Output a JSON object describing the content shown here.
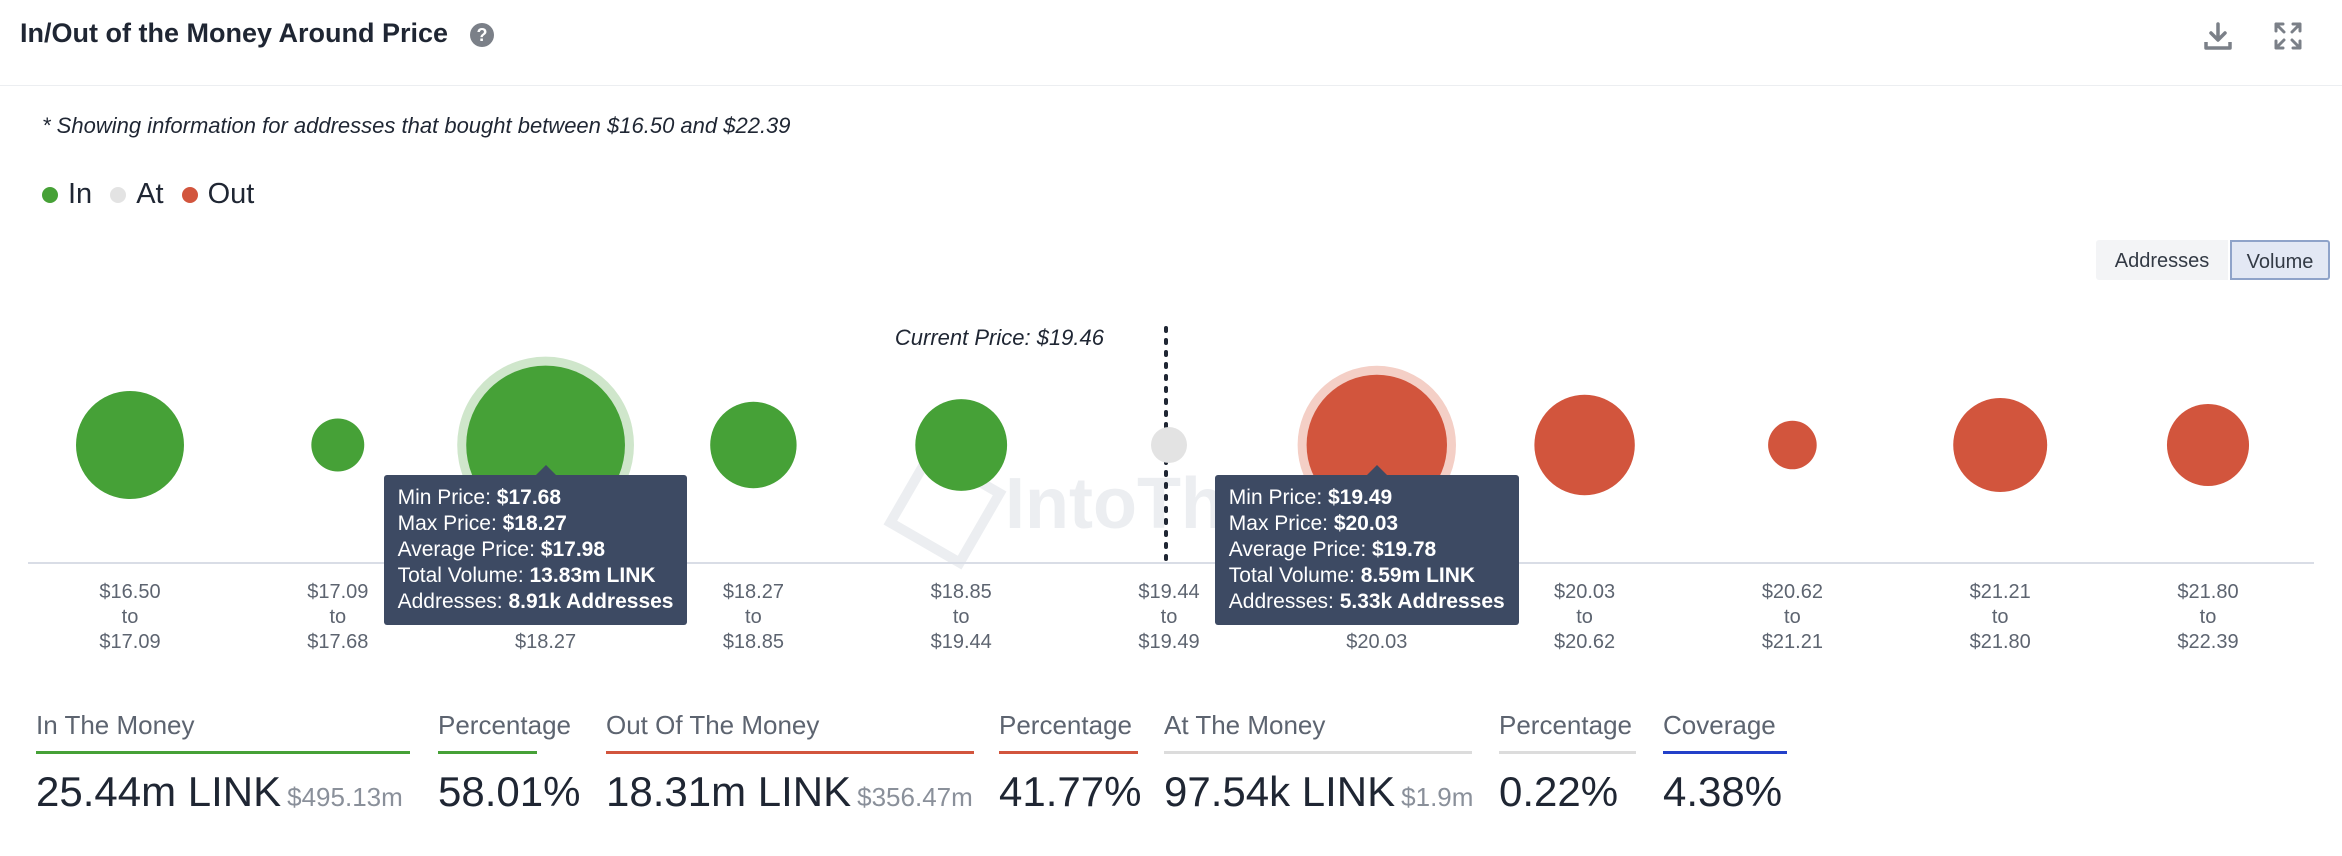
{
  "header": {
    "title": "In/Out of the Money Around Price",
    "help_icon": "question-circle-icon",
    "download_icon": "download-icon",
    "expand_icon": "expand-icon"
  },
  "note": "* Showing information for addresses that bought between $16.50 and $22.39",
  "legend": [
    {
      "label": "In",
      "color": "#46a137"
    },
    {
      "label": "At",
      "color": "#e3e3e3"
    },
    {
      "label": "Out",
      "color": "#d2553d"
    }
  ],
  "toggle": {
    "addresses": "Addresses",
    "volume": "Volume",
    "active": "Volume"
  },
  "watermark": "IntoThe",
  "chart_data": {
    "type": "bubble",
    "current_price_label": "Current Price: $19.46",
    "current_price": 19.46,
    "series_colors": {
      "in": "#46a137",
      "at": "#e3e3e3",
      "out": "#d2553d"
    },
    "buckets": [
      {
        "from": "$16.50",
        "to": "$17.09",
        "status": "in",
        "size": 1.0
      },
      {
        "from": "$17.09",
        "to": "$17.68",
        "status": "in",
        "size": 0.49
      },
      {
        "from": "$17.68",
        "to": "$18.27",
        "status": "in",
        "size": 1.47,
        "highlighted": true
      },
      {
        "from": "$18.27",
        "to": "$18.85",
        "status": "in",
        "size": 0.8
      },
      {
        "from": "$18.85",
        "to": "$19.44",
        "status": "in",
        "size": 0.85
      },
      {
        "from": "$19.44",
        "to": "$19.49",
        "status": "at",
        "size": 0.1
      },
      {
        "from": "$19.49",
        "to": "$20.03",
        "status": "out",
        "size": 1.3,
        "highlighted": true
      },
      {
        "from": "$20.03",
        "to": "$20.62",
        "status": "out",
        "size": 0.93
      },
      {
        "from": "$20.62",
        "to": "$21.21",
        "status": "out",
        "size": 0.45
      },
      {
        "from": "$21.21",
        "to": "$21.80",
        "status": "out",
        "size": 0.87
      },
      {
        "from": "$21.80",
        "to": "$22.39",
        "status": "out",
        "size": 0.76
      }
    ],
    "connector_word": "to",
    "tooltips": [
      {
        "bucket": 2,
        "min_price_label": "Min Price:",
        "min_price": "$17.68",
        "max_price_label": "Max Price:",
        "max_price": "$18.27",
        "avg_price_label": "Average Price:",
        "avg_price": "$17.98",
        "volume_label": "Total Volume:",
        "volume": "13.83m LINK",
        "addresses_label": "Addresses:",
        "addresses": "8.91k Addresses"
      },
      {
        "bucket": 6,
        "min_price_label": "Min Price:",
        "min_price": "$19.49",
        "max_price_label": "Max Price:",
        "max_price": "$20.03",
        "avg_price_label": "Average Price:",
        "avg_price": "$19.78",
        "volume_label": "Total Volume:",
        "volume": "8.59m LINK",
        "addresses_label": "Addresses:",
        "addresses": "5.33k Addresses"
      }
    ]
  },
  "stats": [
    {
      "label": "In The Money",
      "value": "25.44m LINK",
      "sub": "$495.13m",
      "color": "#46a137"
    },
    {
      "label": "Percentage",
      "value": "58.01%",
      "sub": "",
      "color": "#46a137"
    },
    {
      "label": "Out Of The Money",
      "value": "18.31m LINK",
      "sub": "$356.47m",
      "color": "#d2553d"
    },
    {
      "label": "Percentage",
      "value": "41.77%",
      "sub": "",
      "color": "#d2553d"
    },
    {
      "label": "At The Money",
      "value": "97.54k LINK",
      "sub": "$1.9m",
      "color": "#dcdcdc"
    },
    {
      "label": "Percentage",
      "value": "0.22%",
      "sub": "",
      "color": "#dcdcdc"
    },
    {
      "label": "Coverage",
      "value": "4.38%",
      "sub": "",
      "color": "#2340c9"
    }
  ]
}
